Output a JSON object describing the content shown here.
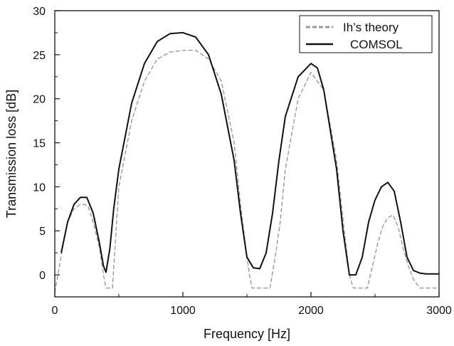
{
  "chart_data": {
    "type": "line",
    "xlabel": "Frequency [Hz]",
    "ylabel": "Transmission loss [dB]",
    "xlim": [
      0,
      3000
    ],
    "ylim": [
      -2.5,
      30
    ],
    "x_ticks": [
      "0",
      "1000",
      "2000",
      "3000"
    ],
    "y_ticks": [
      "0",
      "5",
      "10",
      "15",
      "20",
      "25",
      "30"
    ],
    "x_tick_values": [
      0,
      1000,
      2000,
      3000
    ],
    "y_tick_values": [
      0,
      5,
      10,
      15,
      20,
      25,
      30
    ],
    "grid": false,
    "legend_position": "top-right",
    "series": [
      {
        "name": "Ih’s theory",
        "style": "dashed",
        "color": "#999999",
        "x": [
          0,
          30,
          60,
          100,
          150,
          200,
          230,
          260,
          300,
          350,
          380,
          400,
          420,
          450,
          500,
          600,
          700,
          800,
          900,
          1000,
          1100,
          1200,
          1300,
          1400,
          1450,
          1500,
          1520,
          1540,
          1560,
          1600,
          1640,
          1680,
          1720,
          1760,
          1800,
          1900,
          2000,
          2100,
          2200,
          2260,
          2300,
          2330,
          2360,
          2400,
          2440,
          2480,
          2520,
          2560,
          2600,
          2640,
          2680,
          2720,
          2760,
          2800,
          2850,
          2900,
          2950,
          3000
        ],
        "y": [
          -2,
          0.5,
          3,
          6,
          7.5,
          8,
          8,
          7.8,
          6,
          3,
          0,
          -1.5,
          -1.5,
          -1.5,
          10,
          17.5,
          22,
          24.5,
          25.3,
          25.5,
          25.5,
          24.5,
          22,
          15,
          8,
          2,
          0,
          -1.5,
          -1.5,
          -1.5,
          -1.5,
          -1.5,
          2,
          6,
          12,
          20,
          23,
          21,
          13,
          5,
          0,
          -1.5,
          -1.5,
          -1.5,
          -1.5,
          1,
          3.5,
          5.5,
          6.5,
          6.8,
          5.5,
          3,
          1,
          -0.5,
          -1.5,
          -1.5,
          -1.5,
          -1.5
        ]
      },
      {
        "name": "COMSOL",
        "style": "solid",
        "color": "#111111",
        "x": [
          50,
          100,
          150,
          200,
          250,
          300,
          350,
          380,
          400,
          430,
          460,
          500,
          600,
          700,
          800,
          900,
          1000,
          1100,
          1200,
          1300,
          1400,
          1450,
          1500,
          1550,
          1600,
          1650,
          1700,
          1750,
          1800,
          1900,
          2000,
          2050,
          2100,
          2200,
          2250,
          2300,
          2350,
          2400,
          2450,
          2500,
          2550,
          2600,
          2650,
          2700,
          2750,
          2800,
          2850,
          2900,
          2950,
          3000
        ],
        "y": [
          2.5,
          6,
          8,
          8.8,
          8.8,
          7,
          3.5,
          1,
          0.3,
          3,
          7.5,
          12,
          19.5,
          24,
          26.5,
          27.4,
          27.5,
          27,
          25,
          20.5,
          13,
          7,
          2,
          0.8,
          0.7,
          2.5,
          7,
          13,
          18,
          22.5,
          24,
          23.5,
          21,
          12,
          5,
          0,
          0,
          2,
          6,
          8.5,
          10,
          10.5,
          9.5,
          6,
          2,
          0.5,
          0.2,
          0.1,
          0.1,
          0.1
        ]
      }
    ]
  }
}
